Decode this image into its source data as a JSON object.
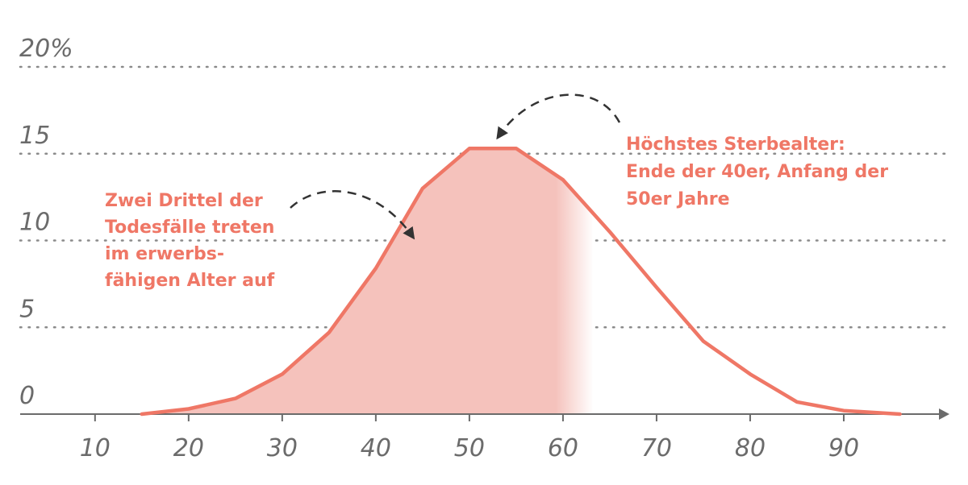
{
  "chart_data": {
    "type": "area",
    "x": [
      15,
      20,
      25,
      30,
      35,
      40,
      45,
      50,
      55,
      60,
      65,
      70,
      75,
      80,
      85,
      90,
      96
    ],
    "values": [
      0,
      0.3,
      0.9,
      2.3,
      4.7,
      8.4,
      13.0,
      15.3,
      15.3,
      13.5,
      10.5,
      7.3,
      4.2,
      2.3,
      0.7,
      0.2,
      0
    ],
    "shaded_until_x": 63,
    "xlim": [
      2,
      100
    ],
    "ylim": [
      0,
      20
    ],
    "x_ticks": [
      10,
      20,
      30,
      40,
      50,
      60,
      70,
      80,
      90
    ],
    "x_tick_labels": [
      "10",
      "20",
      "30",
      "40",
      "50",
      "60",
      "70",
      "80",
      "90"
    ],
    "y_ticks": [
      0,
      5,
      10,
      15,
      20
    ],
    "y_tick_labels": [
      "0",
      "5",
      "10",
      "15",
      "20%"
    ],
    "grid": "horizontal-dotted",
    "colors": {
      "line": "#ef7766",
      "fill": "#f5c2bc",
      "axis": "#6b6b6b",
      "grid": "#8a8a8a",
      "annotation": "#ef7766",
      "arrow": "#333333"
    },
    "annotations": [
      {
        "id": "left",
        "lines": [
          "Zwei Drittel der",
          "Todesfälle treten",
          "im erwerbs-",
          "fähigen Alter auf"
        ],
        "points_to": {
          "x": 43,
          "y": 10
        }
      },
      {
        "id": "right",
        "lines": [
          "Höchstes Sterbealter:",
          "Ende der 40er, Anfang der",
          "50er Jahre"
        ],
        "points_to": {
          "x": 53,
          "y": 15.3
        }
      }
    ]
  }
}
